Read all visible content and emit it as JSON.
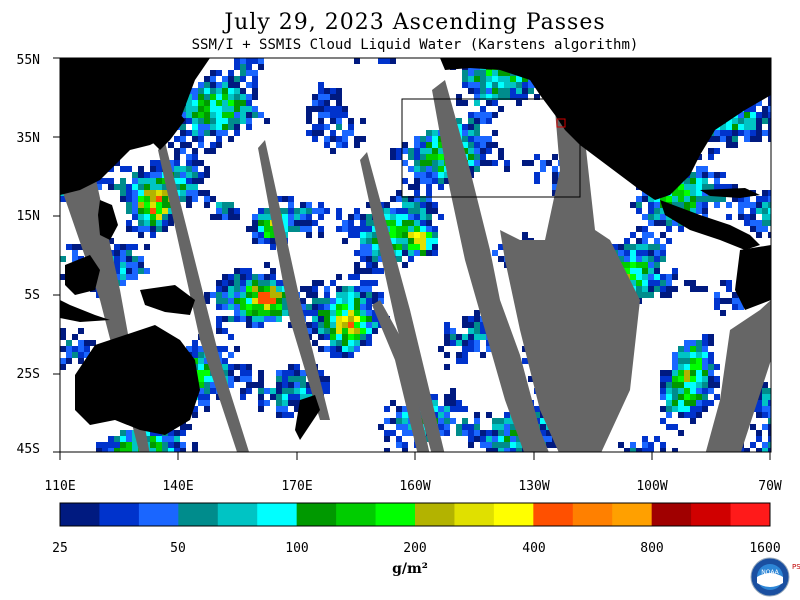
{
  "header": {
    "title": "July 29, 2023  Ascending Passes",
    "subtitle": "SSM/I + SSMIS Cloud Liquid Water (Karstens algorithm)"
  },
  "axes": {
    "lat_labels": [
      "55N",
      "35N",
      "15N",
      "5S",
      "25S",
      "45S"
    ],
    "lon_labels": [
      "110E",
      "140E",
      "170E",
      "160W",
      "130W",
      "100W",
      "70W"
    ]
  },
  "colorbar": {
    "labels": [
      "25",
      "50",
      "100",
      "200",
      "400",
      "800",
      "1600"
    ],
    "units": "g/m²",
    "colors": [
      "#001a80",
      "#0033cc",
      "#1a66ff",
      "#008c8c",
      "#00c4c4",
      "#00ffff",
      "#009900",
      "#00cc00",
      "#00ff00",
      "#b3b300",
      "#e0e000",
      "#ffff00",
      "#ff5000",
      "#ff8000",
      "#ffa000",
      "#a00000",
      "#d00000",
      "#ff1a1a"
    ]
  },
  "logo": {
    "org": "NOAA",
    "side_text": "PSL"
  },
  "chart_data": {
    "type": "heatmap",
    "title": "July 29, 2023  Ascending Passes",
    "subtitle": "SSM/I + SSMIS Cloud Liquid Water (Karstens algorithm)",
    "xlabel": "",
    "ylabel": "",
    "x_range": [
      "110E",
      "70W"
    ],
    "y_range": [
      "45S",
      "55N"
    ],
    "colorbar_levels": [
      25,
      50,
      100,
      200,
      400,
      800,
      1600
    ],
    "units": "g/m²",
    "no_data_color": "#666666",
    "land_color": "#000000"
  }
}
